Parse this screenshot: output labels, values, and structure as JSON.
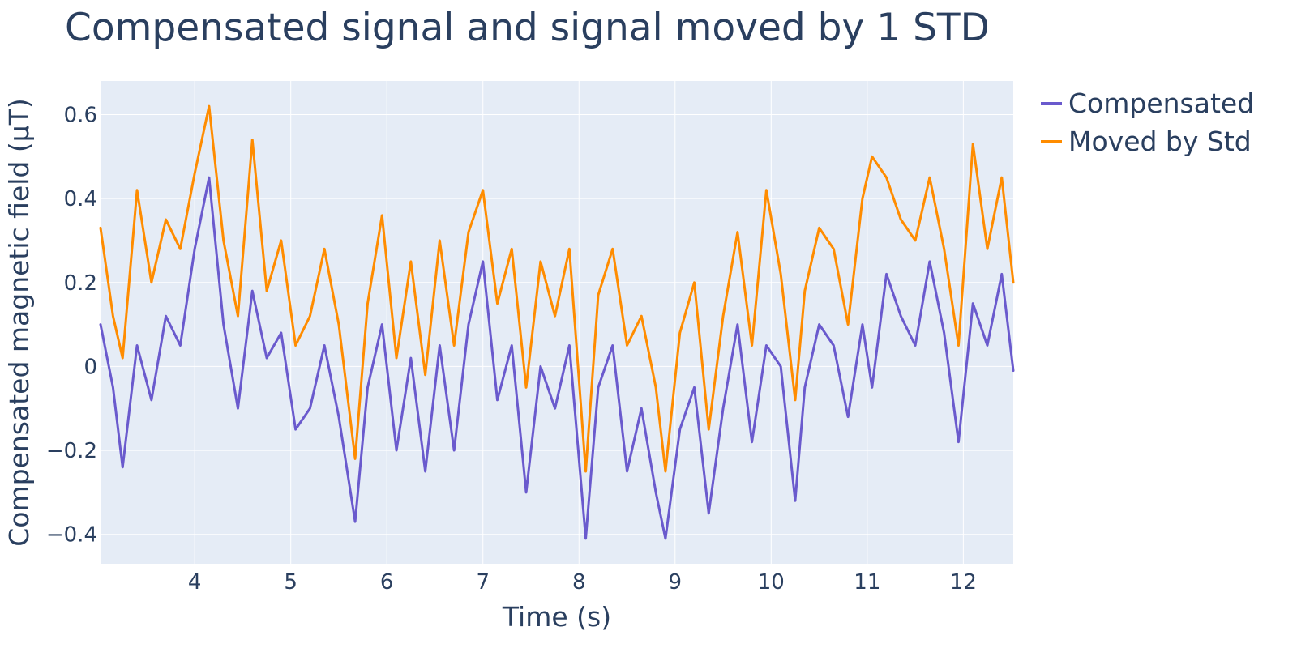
{
  "chart_data": {
    "type": "line",
    "title": "Compensated signal and signal moved by 1 STD",
    "xlabel": "Time (s)",
    "ylabel": "Compensated magnetic field (µT)",
    "xlim": [
      3.02,
      12.52
    ],
    "ylim": [
      -0.47,
      0.68
    ],
    "x_ticks": [
      4,
      5,
      6,
      7,
      8,
      9,
      10,
      11,
      12
    ],
    "x_tick_labels": [
      "4",
      "5",
      "6",
      "7",
      "8",
      "9",
      "10",
      "11",
      "12"
    ],
    "y_ticks": [
      0.6,
      0.4,
      0.2,
      0,
      -0.2,
      -0.4
    ],
    "y_tick_labels": [
      "0.6",
      "0.4",
      "0.2",
      "0",
      "−0.2",
      "−0.4"
    ],
    "grid": true,
    "legend_position": "top-right",
    "series": [
      {
        "name": "Compensated",
        "color": "#6a5acd",
        "x": [
          3.02,
          3.15,
          3.25,
          3.4,
          3.55,
          3.7,
          3.85,
          4.0,
          4.15,
          4.3,
          4.45,
          4.6,
          4.75,
          4.9,
          5.05,
          5.2,
          5.35,
          5.5,
          5.67,
          5.8,
          5.95,
          6.1,
          6.25,
          6.4,
          6.55,
          6.7,
          6.85,
          7.0,
          7.15,
          7.3,
          7.45,
          7.6,
          7.75,
          7.9,
          8.07,
          8.2,
          8.35,
          8.5,
          8.65,
          8.8,
          8.9,
          9.05,
          9.2,
          9.35,
          9.5,
          9.65,
          9.8,
          9.95,
          10.1,
          10.25,
          10.35,
          10.5,
          10.65,
          10.8,
          10.95,
          11.05,
          11.2,
          11.35,
          11.5,
          11.65,
          11.8,
          11.95,
          12.1,
          12.25,
          12.4,
          12.52
        ],
        "y": [
          0.1,
          -0.05,
          -0.24,
          0.05,
          -0.08,
          0.12,
          0.05,
          0.28,
          0.45,
          0.1,
          -0.1,
          0.18,
          0.02,
          0.08,
          -0.15,
          -0.1,
          0.05,
          -0.12,
          -0.37,
          -0.05,
          0.1,
          -0.2,
          0.02,
          -0.25,
          0.05,
          -0.2,
          0.1,
          0.25,
          -0.08,
          0.05,
          -0.3,
          0.0,
          -0.1,
          0.05,
          -0.41,
          -0.05,
          0.05,
          -0.25,
          -0.1,
          -0.3,
          -0.41,
          -0.15,
          -0.05,
          -0.35,
          -0.1,
          0.1,
          -0.18,
          0.05,
          0.0,
          -0.32,
          -0.05,
          0.1,
          0.05,
          -0.12,
          0.1,
          -0.05,
          0.22,
          0.12,
          0.05,
          0.25,
          0.08,
          -0.18,
          0.15,
          0.05,
          0.22,
          -0.01
        ]
      },
      {
        "name": "Moved by Std",
        "color": "#ff8c00",
        "x": [
          3.02,
          3.15,
          3.25,
          3.4,
          3.55,
          3.7,
          3.85,
          4.0,
          4.15,
          4.3,
          4.45,
          4.6,
          4.75,
          4.9,
          5.05,
          5.2,
          5.35,
          5.5,
          5.67,
          5.8,
          5.95,
          6.1,
          6.25,
          6.4,
          6.55,
          6.7,
          6.85,
          7.0,
          7.15,
          7.3,
          7.45,
          7.6,
          7.75,
          7.9,
          8.07,
          8.2,
          8.35,
          8.5,
          8.65,
          8.8,
          8.9,
          9.05,
          9.2,
          9.35,
          9.5,
          9.65,
          9.8,
          9.95,
          10.1,
          10.25,
          10.35,
          10.5,
          10.65,
          10.8,
          10.95,
          11.05,
          11.2,
          11.35,
          11.5,
          11.65,
          11.8,
          11.95,
          12.1,
          12.25,
          12.4,
          12.52
        ],
        "y": [
          0.33,
          0.12,
          0.02,
          0.42,
          0.2,
          0.35,
          0.28,
          0.46,
          0.62,
          0.3,
          0.12,
          0.54,
          0.18,
          0.3,
          0.05,
          0.12,
          0.28,
          0.1,
          -0.22,
          0.15,
          0.36,
          0.02,
          0.25,
          -0.02,
          0.3,
          0.05,
          0.32,
          0.42,
          0.15,
          0.28,
          -0.05,
          0.25,
          0.12,
          0.28,
          -0.25,
          0.17,
          0.28,
          0.05,
          0.12,
          -0.05,
          -0.25,
          0.08,
          0.2,
          -0.15,
          0.12,
          0.32,
          0.05,
          0.42,
          0.22,
          -0.08,
          0.18,
          0.33,
          0.28,
          0.1,
          0.4,
          0.5,
          0.45,
          0.35,
          0.3,
          0.45,
          0.28,
          0.05,
          0.53,
          0.28,
          0.45,
          0.2
        ]
      }
    ]
  }
}
